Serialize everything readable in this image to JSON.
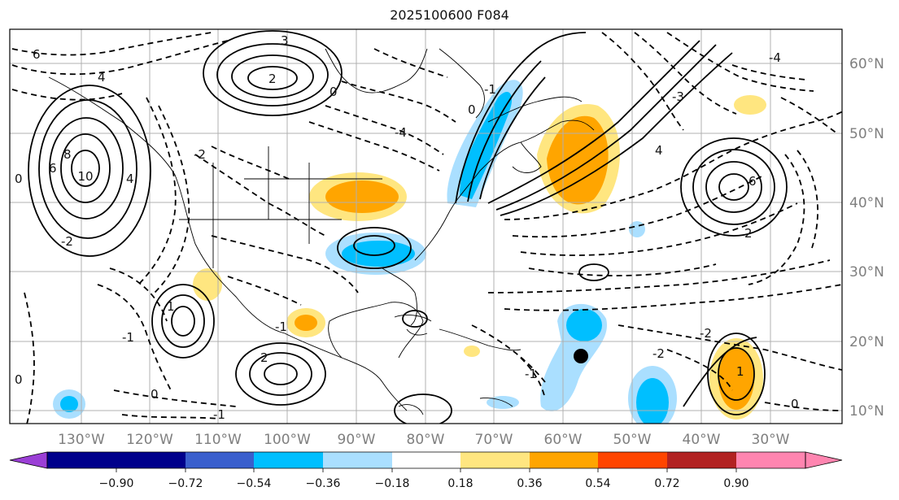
{
  "title": "2025100600 F084",
  "lon_ticks": [
    "130°W",
    "120°W",
    "110°W",
    "100°W",
    "90°W",
    "80°W",
    "70°W",
    "60°W",
    "50°W",
    "40°W",
    "30°W"
  ],
  "lat_ticks": [
    "60°N",
    "50°N",
    "40°N",
    "30°N",
    "20°N",
    "10°N"
  ],
  "colorbar": {
    "levels": [
      "−0.90",
      "−0.72",
      "−0.54",
      "−0.36",
      "−0.18",
      "0.18",
      "0.36",
      "0.54",
      "0.72",
      "0.90"
    ],
    "colors": [
      "#9b3fd6",
      "#00008b",
      "#3a5fcd",
      "#00bfff",
      "#aadfff",
      "#ffffff",
      "#ffe680",
      "#ffa500",
      "#ff4500",
      "#b22222",
      "#ff85b0"
    ]
  },
  "contour_labels": [
    "6",
    "4",
    "10",
    "8",
    "6",
    "4",
    "-2",
    "3",
    "2",
    "0",
    "-4",
    "0",
    "-1",
    "-2",
    "4",
    "6",
    "-3",
    "-4",
    "2",
    "-2",
    "0",
    "-1",
    "-1",
    "-1",
    "1",
    "0",
    "0",
    "-2",
    "2",
    "-1",
    "1",
    "0"
  ],
  "marker": "storm-center-dot"
}
